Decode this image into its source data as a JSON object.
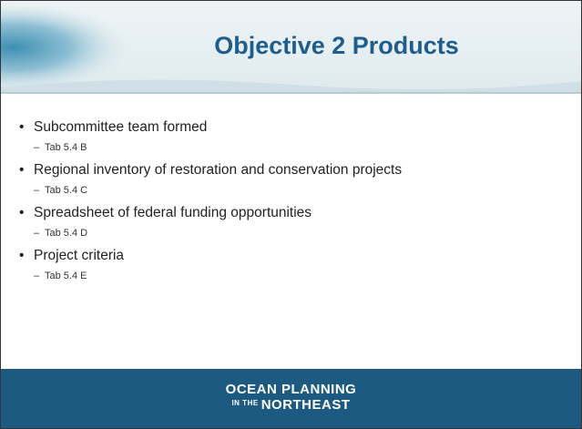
{
  "header": {
    "title": "Objective 2 Products"
  },
  "bullets": [
    {
      "text": "Subcommittee team formed",
      "sub": "Tab 5.4 B"
    },
    {
      "text": "Regional inventory of restoration and conservation projects",
      "sub": "Tab 5.4 C"
    },
    {
      "text": "Spreadsheet of federal funding opportunities",
      "sub": "Tab 5.4 D"
    },
    {
      "text": "Project criteria",
      "sub": "Tab 5.4 E"
    }
  ],
  "footer": {
    "logo_line1": "OCEAN PLANNING",
    "logo_small": "IN THE",
    "logo_line2": "NORTHEAST"
  }
}
